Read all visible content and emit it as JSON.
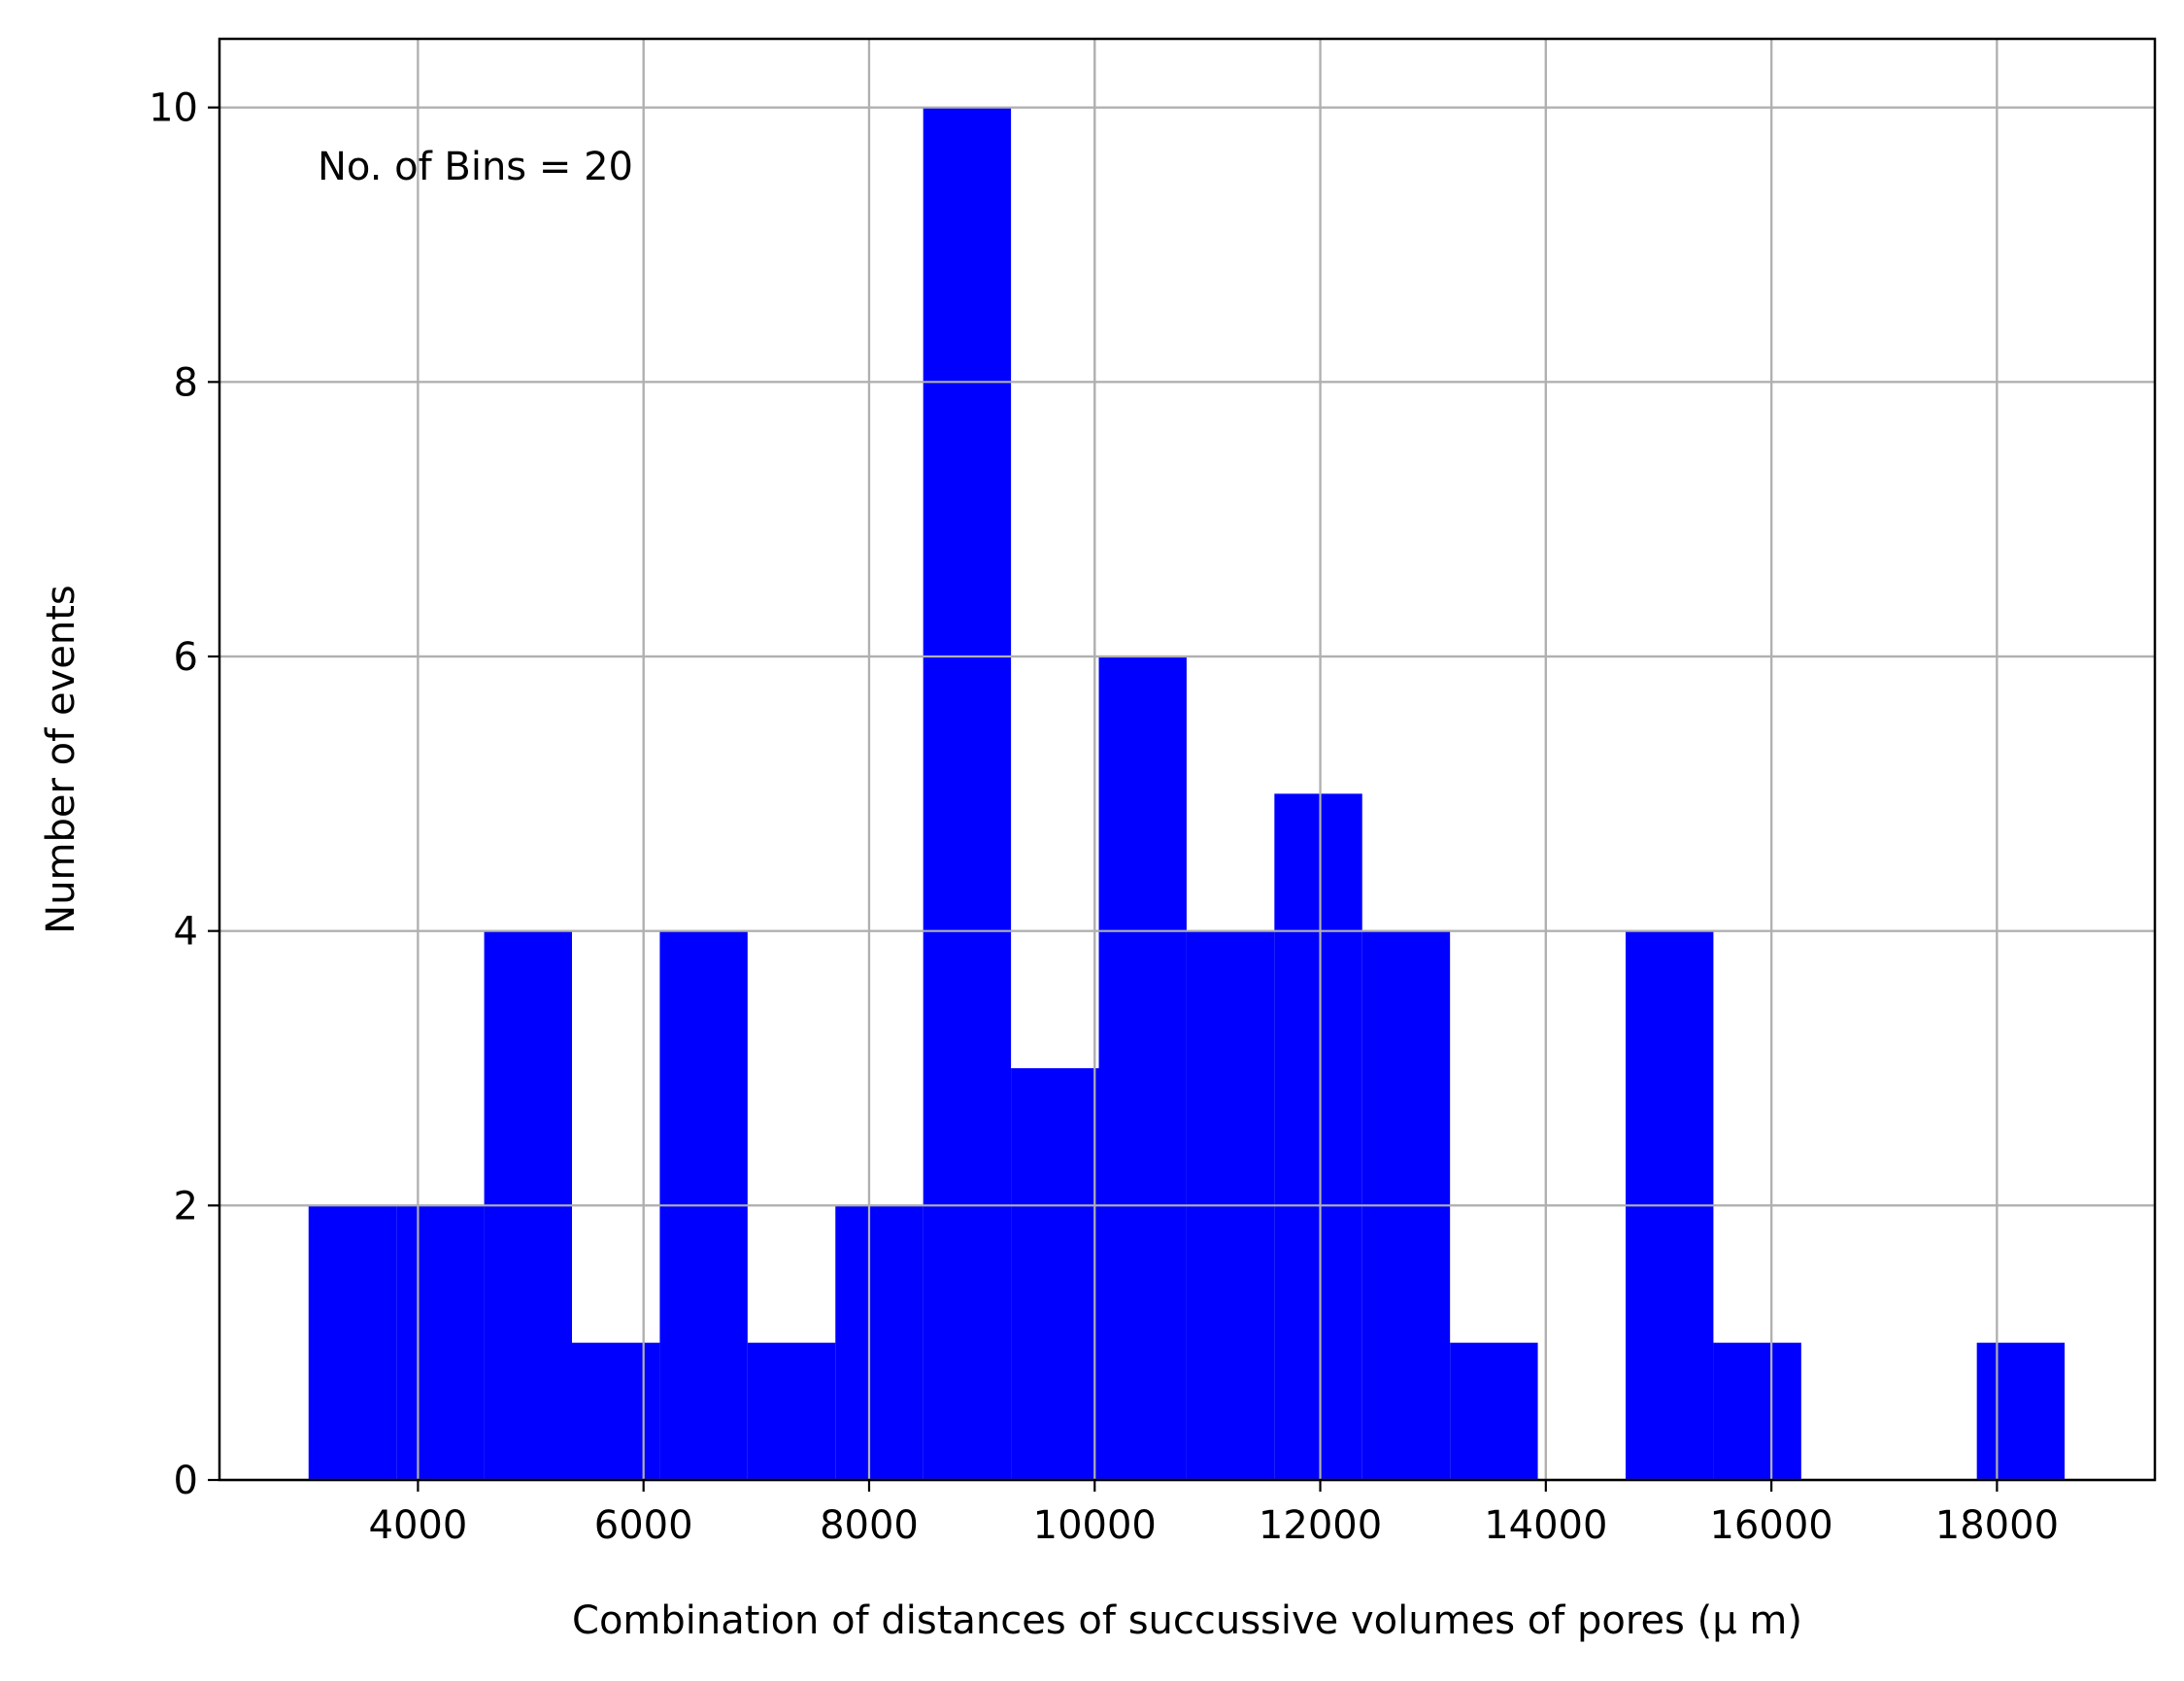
{
  "chart_data": {
    "type": "bar",
    "subtype": "histogram",
    "bins": 20,
    "bin_edges": [
      3030,
      3808.5,
      4587,
      5365.5,
      6144,
      6922.5,
      7701,
      8479.5,
      9258,
      10036.5,
      10815,
      11593.5,
      12372,
      13150.5,
      13929,
      14707.5,
      15486,
      16264.5,
      17043,
      17821.5,
      18600
    ],
    "counts": [
      2,
      2,
      4,
      1,
      4,
      1,
      2,
      10,
      3,
      6,
      4,
      5,
      4,
      1,
      0,
      4,
      1,
      0,
      0,
      1
    ],
    "bar_color": "#0000ff",
    "grid": true,
    "grid_color": "#b0b0b0",
    "xlim": [
      2240,
      19400
    ],
    "ylim": [
      0,
      10.5
    ],
    "xticks": [
      4000,
      6000,
      8000,
      10000,
      12000,
      14000,
      16000,
      18000
    ],
    "yticks": [
      0,
      2,
      4,
      6,
      8,
      10
    ],
    "xlabel": "Combination of distances of succussive volumes of pores  (μ m)",
    "ylabel": "Number of events",
    "annotation": "No. of Bins = 20",
    "annotation_position": "top-left"
  }
}
